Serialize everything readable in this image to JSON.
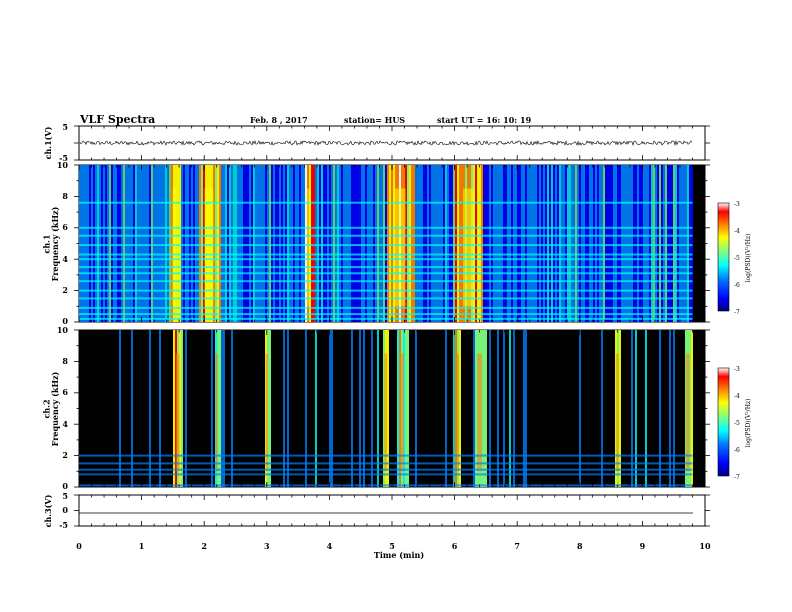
{
  "header": {
    "title": "VLF Spectra",
    "date": "Feb. 8  , 2017",
    "station": "station= HUS",
    "start_ut": "start  UT =   16: 10: 19"
  },
  "colors": {
    "background_spectrogram": "#000000",
    "colormap": [
      "#00007f",
      "#0000ff",
      "#0080ff",
      "#00ffff",
      "#80ff80",
      "#ffff00",
      "#ff8000",
      "#ff0000",
      "#ffffff"
    ],
    "waveform": "#000000"
  },
  "chart_data": [
    {
      "type": "line",
      "panel": "ch1-waveform",
      "ylabel": "ch.1(V)",
      "ylim": [
        -5,
        5
      ],
      "yticks": [
        "5",
        "-5"
      ],
      "xlim": [
        0,
        10
      ],
      "series": [
        {
          "values_description_level": 0,
          "noise_amplitude_approx": 0.6
        }
      ]
    },
    {
      "type": "heatmap",
      "panel": "ch1-spectrogram",
      "ylabel": "ch.1\nFrequency  (kHz)",
      "ylim": [
        0,
        10
      ],
      "yticks": [
        "0",
        "2",
        "4",
        "6",
        "8",
        "10"
      ],
      "xlim": [
        0,
        10
      ],
      "data_end_min": 9.8,
      "colorbar": {
        "label": "log(PSD)(V²/Hz)",
        "range": [
          -7,
          -3
        ],
        "ticks": [
          "-3",
          "-4",
          "-5",
          "-6",
          "-7"
        ]
      },
      "horizontal_lines_khz": [
        0.2,
        0.5,
        0.9,
        1.5,
        2.0,
        2.6,
        3.1,
        3.5,
        4.0,
        4.3,
        4.9,
        5.5,
        6.0,
        7.6
      ],
      "burst_bands_min": [
        [
          1.45,
          1.6
        ],
        [
          1.9,
          2.25
        ],
        [
          3.6,
          3.75
        ],
        [
          4.9,
          5.35
        ],
        [
          6.0,
          6.45
        ]
      ]
    },
    {
      "type": "heatmap",
      "panel": "ch2-spectrogram",
      "ylabel": "ch.2\nFrequency  (kHz)",
      "ylim": [
        0,
        10
      ],
      "yticks": [
        "0",
        "2",
        "4",
        "6",
        "8",
        "10"
      ],
      "xlim": [
        0,
        10
      ],
      "data_end_min": 9.8,
      "colorbar": {
        "label": "log(PSD)(V²/Hz)",
        "range": [
          -7,
          -3
        ],
        "ticks": [
          "-3",
          "-4",
          "-5",
          "-6",
          "-7"
        ]
      },
      "horizontal_lines_khz": [
        0.1,
        0.8,
        1.1,
        1.5,
        2.0
      ],
      "burst_bands_min": [
        [
          1.5,
          1.65
        ],
        [
          2.15,
          2.25
        ],
        [
          2.95,
          3.05
        ],
        [
          4.85,
          4.95
        ],
        [
          5.05,
          5.25
        ],
        [
          6.0,
          6.1
        ],
        [
          6.3,
          6.5
        ],
        [
          8.55,
          8.65
        ],
        [
          9.65,
          9.8
        ]
      ]
    },
    {
      "type": "line",
      "panel": "ch3-waveform",
      "ylabel": "ch.3(V)",
      "ylim": [
        -5,
        5
      ],
      "yticks": [
        "5",
        "0",
        "-5"
      ],
      "xlim": [
        0,
        10
      ],
      "series": [
        {
          "constant_level": -1.2
        }
      ]
    }
  ],
  "xaxis": {
    "label": "Time  (min)",
    "ticks": [
      "0",
      "1",
      "2",
      "3",
      "4",
      "5",
      "6",
      "7",
      "8",
      "9",
      "10"
    ]
  }
}
